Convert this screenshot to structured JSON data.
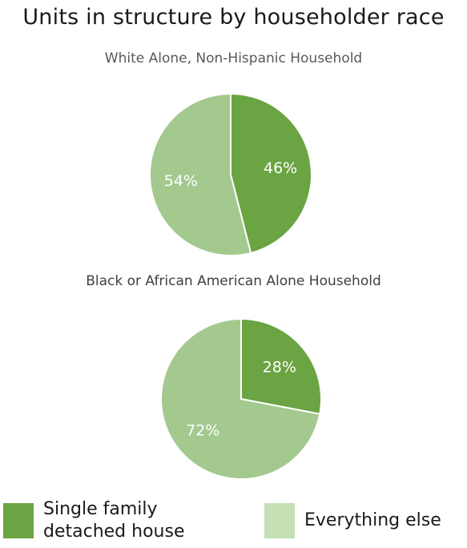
{
  "chart_data": {
    "type": "pie",
    "title": "Units in structure by householder race",
    "series": [
      {
        "name": "White Alone, Non-Hispanic Household",
        "values": [
          46,
          54
        ],
        "labels": [
          "46%",
          "54%"
        ]
      },
      {
        "name": "Black or African American Alone Household",
        "values": [
          28,
          72
        ],
        "labels": [
          "28%",
          "72%"
        ]
      }
    ],
    "categories": [
      "Single family detached house",
      "Everything else"
    ],
    "colors": [
      "#6aa443",
      "#a3c98e"
    ],
    "legend": {
      "position": "bottom",
      "items": [
        {
          "label": "Single family\ndetached house",
          "color": "#6aa443"
        },
        {
          "label": "Everything else",
          "color": "#c5e0b5"
        }
      ]
    }
  }
}
